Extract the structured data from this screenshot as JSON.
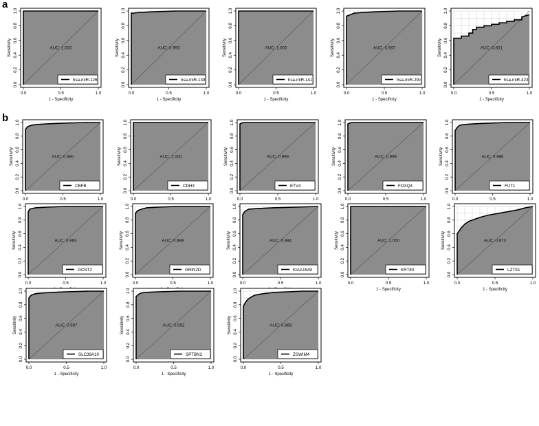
{
  "panel_labels": {
    "a": "a",
    "b": "b"
  },
  "axis": {
    "xlabel": "1 - Specificity",
    "ylabel": "Sensitivity",
    "xticks": [
      "0.0",
      "0.5",
      "1.0"
    ],
    "yticks": [
      "0.0",
      "0.2",
      "0.4",
      "0.6",
      "0.8",
      "1.0"
    ]
  },
  "colors": {
    "auc_fill": "#8c8c8c",
    "grid": "#c8c8c8",
    "curve": "#000000",
    "diagonal": "#555555"
  },
  "chart_data": [
    {
      "type": "line",
      "panel": "a",
      "series": [
        {
          "name": "hsa-miR-126",
          "x": [
            0,
            0,
            1
          ],
          "y": [
            0,
            1,
            1
          ]
        }
      ],
      "annotation": "AUC: 1.000",
      "xlabel": "1 - Specificity",
      "ylabel": "Sensitivity",
      "xlim": [
        0,
        1
      ],
      "ylim": [
        0,
        1
      ],
      "legend": "bottom-right",
      "grid": true
    },
    {
      "type": "line",
      "panel": "a",
      "series": [
        {
          "name": "hsa-miR-139",
          "x": [
            0,
            0,
            0.02,
            0.1,
            0.3,
            0.6,
            1
          ],
          "y": [
            0,
            0.97,
            0.97,
            0.98,
            0.99,
            1,
            1
          ]
        }
      ],
      "annotation": "AUC: 0.993",
      "xlabel": "1 - Specificity",
      "ylabel": "Sensitivity",
      "xlim": [
        0,
        1
      ],
      "ylim": [
        0,
        1
      ],
      "legend": "bottom-right",
      "grid": true
    },
    {
      "type": "line",
      "panel": "a",
      "series": [
        {
          "name": "hsa-miR-141",
          "x": [
            0,
            0,
            1
          ],
          "y": [
            0,
            1,
            1
          ]
        }
      ],
      "annotation": "AUC: 1.000",
      "xlabel": "1 - Specificity",
      "ylabel": "Sensitivity",
      "xlim": [
        0,
        1
      ],
      "ylim": [
        0,
        1
      ],
      "legend": "bottom-right",
      "grid": true
    },
    {
      "type": "line",
      "panel": "a",
      "series": [
        {
          "name": "hsa-miR-29c",
          "x": [
            0,
            0,
            0.05,
            0.1,
            0.2,
            0.4,
            0.7,
            1
          ],
          "y": [
            0,
            0.93,
            0.95,
            0.97,
            0.98,
            0.99,
            1,
            1
          ]
        }
      ],
      "annotation": "AUC: 0.987",
      "xlabel": "1 - Specificity",
      "ylabel": "Sensitivity",
      "xlim": [
        0,
        1
      ],
      "ylim": [
        0,
        1
      ],
      "legend": "bottom-right",
      "grid": true
    },
    {
      "type": "line",
      "panel": "a",
      "series": [
        {
          "name": "hsa-miR-423",
          "x": [
            0,
            0,
            0.1,
            0.1,
            0.2,
            0.2,
            0.25,
            0.25,
            0.3,
            0.3,
            0.4,
            0.4,
            0.5,
            0.5,
            0.6,
            0.6,
            0.7,
            0.7,
            0.8,
            0.8,
            0.9,
            0.9,
            1
          ],
          "y": [
            0,
            0.63,
            0.63,
            0.66,
            0.66,
            0.7,
            0.7,
            0.75,
            0.75,
            0.78,
            0.78,
            0.8,
            0.8,
            0.82,
            0.82,
            0.84,
            0.84,
            0.86,
            0.86,
            0.88,
            0.88,
            0.92,
            0.95
          ]
        }
      ],
      "annotation": "AUC: 0.801",
      "xlabel": "1 - Specificity",
      "ylabel": "Sensitivity",
      "xlim": [
        0,
        1
      ],
      "ylim": [
        0,
        1
      ],
      "legend": "bottom-right",
      "grid": true
    },
    {
      "type": "line",
      "panel": "b",
      "series": [
        {
          "name": "CBFB",
          "x": [
            0,
            0,
            0.03,
            0.08,
            0.15,
            0.3,
            0.5,
            0.8,
            1
          ],
          "y": [
            0,
            0.9,
            0.94,
            0.96,
            0.97,
            0.98,
            0.99,
            1,
            1
          ]
        }
      ],
      "annotation": "AUC: 0.980",
      "xlabel": "1 - Specificity",
      "ylabel": "Sensitivity",
      "xlim": [
        0,
        1
      ],
      "ylim": [
        0,
        1
      ],
      "legend": "bottom-right",
      "grid": true
    },
    {
      "type": "line",
      "panel": "b",
      "series": [
        {
          "name": "CDH3",
          "x": [
            0,
            0,
            1
          ],
          "y": [
            0,
            1,
            1
          ]
        }
      ],
      "annotation": "AUC: 1.000",
      "xlabel": "1 - Specificity",
      "ylabel": "Sensitivity",
      "xlim": [
        0,
        1
      ],
      "ylim": [
        0,
        1
      ],
      "legend": "bottom-right",
      "grid": true
    },
    {
      "type": "line",
      "panel": "b",
      "series": [
        {
          "name": "ETV4",
          "x": [
            0,
            0,
            0.02,
            0.05,
            1
          ],
          "y": [
            0,
            0.98,
            0.99,
            1,
            1
          ]
        }
      ],
      "annotation": "AUC: 0.999",
      "xlabel": "1 - Specificity",
      "ylabel": "Sensitivity",
      "xlim": [
        0,
        1
      ],
      "ylim": [
        0,
        1
      ],
      "legend": "bottom-right",
      "grid": true
    },
    {
      "type": "line",
      "panel": "b",
      "series": [
        {
          "name": "FOXQ4",
          "x": [
            0,
            0,
            0.02,
            0.05,
            1
          ],
          "y": [
            0,
            0.98,
            0.99,
            1,
            1
          ]
        }
      ],
      "annotation": "AUC: 0.999",
      "xlabel": "1 - Specificity",
      "ylabel": "Sensitivity",
      "xlim": [
        0,
        1
      ],
      "ylim": [
        0,
        1
      ],
      "legend": "bottom-right",
      "grid": true
    },
    {
      "type": "line",
      "panel": "b",
      "series": [
        {
          "name": "FUT1",
          "x": [
            0,
            0,
            0.03,
            0.06,
            0.12,
            0.25,
            0.45,
            0.7,
            1
          ],
          "y": [
            0,
            0.88,
            0.93,
            0.96,
            0.97,
            0.98,
            0.99,
            1,
            1
          ]
        }
      ],
      "annotation": "AUC: 0.986",
      "xlabel": "1 - Specificity",
      "ylabel": "Sensitivity",
      "xlim": [
        0,
        1
      ],
      "ylim": [
        0,
        1
      ],
      "legend": "bottom-right",
      "grid": true
    },
    {
      "type": "line",
      "panel": "b",
      "series": [
        {
          "name": "GCNT2",
          "x": [
            0,
            0,
            0.02,
            0.05,
            0.1,
            0.25,
            0.5,
            1
          ],
          "y": [
            0,
            0.92,
            0.96,
            0.97,
            0.98,
            0.99,
            1,
            1
          ]
        }
      ],
      "annotation": "AUC: 0.993",
      "xlabel": "1 - Specificity",
      "ylabel": "Sensitivity",
      "xlim": [
        0,
        1
      ],
      "ylim": [
        0,
        1
      ],
      "legend": "bottom-right",
      "grid": true
    },
    {
      "type": "line",
      "panel": "b",
      "series": [
        {
          "name": "GRIN2D",
          "x": [
            0,
            0,
            0.03,
            0.08,
            0.15,
            0.3,
            0.55,
            1
          ],
          "y": [
            0,
            0.9,
            0.94,
            0.96,
            0.98,
            0.99,
            1,
            1
          ]
        }
      ],
      "annotation": "AUC: 0.989",
      "xlabel": "1 - Specificity",
      "ylabel": "Sensitivity",
      "xlim": [
        0,
        1
      ],
      "ylim": [
        0,
        1
      ],
      "legend": "bottom-right",
      "grid": true
    },
    {
      "type": "line",
      "panel": "b",
      "series": [
        {
          "name": "KIAA1549",
          "x": [
            0,
            0,
            0.03,
            0.08,
            0.2,
            0.4,
            0.7,
            1
          ],
          "y": [
            0,
            0.88,
            0.93,
            0.96,
            0.97,
            0.98,
            0.99,
            1
          ]
        }
      ],
      "annotation": "AUC: 0.984",
      "xlabel": "1 - Specificity",
      "ylabel": "Sensitivity",
      "xlim": [
        0,
        1
      ],
      "ylim": [
        0,
        1
      ],
      "legend": "bottom-right",
      "grid": true
    },
    {
      "type": "line",
      "panel": "b",
      "series": [
        {
          "name": "KRT80",
          "x": [
            0,
            0,
            1
          ],
          "y": [
            0,
            1,
            1
          ]
        }
      ],
      "annotation": "AUC: 1.000",
      "xlabel": "1 - Specificity",
      "ylabel": "Sensitivity",
      "xlim": [
        0,
        1
      ],
      "ylim": [
        0,
        1
      ],
      "legend": "bottom-right",
      "grid": true
    },
    {
      "type": "line",
      "panel": "b",
      "series": [
        {
          "name": "LZTS1",
          "x": [
            0,
            0,
            0.05,
            0.1,
            0.15,
            0.2,
            0.3,
            0.4,
            0.5,
            0.6,
            0.7,
            0.8,
            0.9,
            1
          ],
          "y": [
            0,
            0.6,
            0.68,
            0.74,
            0.78,
            0.8,
            0.84,
            0.87,
            0.89,
            0.91,
            0.93,
            0.95,
            0.98,
            1
          ]
        }
      ],
      "annotation": "AUC: 0.873",
      "xlabel": "1 - Specificity",
      "ylabel": "Sensitivity",
      "xlim": [
        0,
        1
      ],
      "ylim": [
        0,
        1
      ],
      "legend": "bottom-right",
      "grid": true
    },
    {
      "type": "line",
      "panel": "b",
      "series": [
        {
          "name": "SLC39A10",
          "x": [
            0,
            0,
            0.03,
            0.08,
            0.15,
            0.3,
            0.5,
            0.8,
            1
          ],
          "y": [
            0,
            0.9,
            0.94,
            0.96,
            0.97,
            0.98,
            0.99,
            1,
            1
          ]
        }
      ],
      "annotation": "AUC: 0.987",
      "xlabel": "1 - Specificity",
      "ylabel": "Sensitivity",
      "xlim": [
        0,
        1
      ],
      "ylim": [
        0,
        1
      ],
      "legend": "bottom-right",
      "grid": true
    },
    {
      "type": "line",
      "panel": "b",
      "series": [
        {
          "name": "SPTBN2",
          "x": [
            0,
            0,
            0.03,
            0.06,
            0.12,
            0.3,
            0.6,
            1
          ],
          "y": [
            0,
            0.92,
            0.95,
            0.97,
            0.98,
            0.99,
            1,
            1
          ]
        }
      ],
      "annotation": "AUC: 0.992",
      "xlabel": "1 - Specificity",
      "ylabel": "Sensitivity",
      "xlim": [
        0,
        1
      ],
      "ylim": [
        0,
        1
      ],
      "legend": "bottom-right",
      "grid": true
    },
    {
      "type": "line",
      "panel": "b",
      "series": [
        {
          "name": "ZSWIM4",
          "x": [
            0,
            0,
            0.03,
            0.06,
            0.1,
            0.15,
            0.25,
            0.4,
            0.6,
            0.8,
            1
          ],
          "y": [
            0,
            0.78,
            0.84,
            0.88,
            0.91,
            0.94,
            0.96,
            0.98,
            0.99,
            1,
            1
          ]
        }
      ],
      "annotation": "AUC: 0.968",
      "xlabel": "1 - Specificity",
      "ylabel": "Sensitivity",
      "xlim": [
        0,
        1
      ],
      "ylim": [
        0,
        1
      ],
      "legend": "bottom-right",
      "grid": true
    }
  ]
}
